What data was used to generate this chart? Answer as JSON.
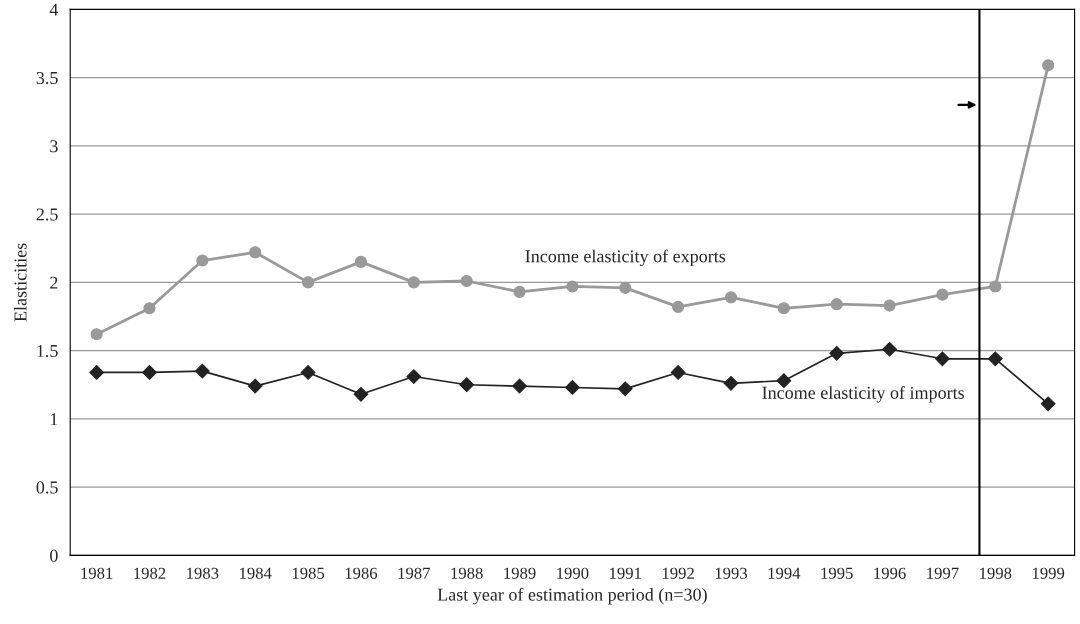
{
  "chart_data": {
    "type": "line",
    "xlabel": "Last year of estimation period (n=30)",
    "ylabel": "Elasticities",
    "x": [
      1981,
      1982,
      1983,
      1984,
      1985,
      1986,
      1987,
      1988,
      1989,
      1990,
      1991,
      1992,
      1993,
      1994,
      1995,
      1996,
      1997,
      1998,
      1999
    ],
    "series": [
      {
        "name": "Income elasticity of exports",
        "color": "#999999",
        "marker": "circle",
        "values": [
          1.62,
          1.81,
          2.16,
          2.22,
          2.0,
          2.15,
          2.0,
          2.01,
          1.93,
          1.97,
          1.96,
          1.82,
          1.89,
          1.81,
          1.84,
          1.83,
          1.91,
          1.97,
          3.59
        ]
      },
      {
        "name": "Income elasticity of imports",
        "color": "#222222",
        "marker": "diamond",
        "values": [
          1.34,
          1.34,
          1.35,
          1.24,
          1.34,
          1.18,
          1.31,
          1.25,
          1.24,
          1.23,
          1.22,
          1.34,
          1.26,
          1.28,
          1.48,
          1.51,
          1.44,
          1.44,
          1.11
        ]
      }
    ],
    "xlim": [
      1980.5,
      1999.5
    ],
    "xticks": [
      1981,
      1982,
      1983,
      1984,
      1985,
      1986,
      1987,
      1988,
      1989,
      1990,
      1991,
      1992,
      1993,
      1994,
      1995,
      1996,
      1997,
      1998,
      1999
    ],
    "ylim": [
      0,
      4
    ],
    "yticks": [
      0,
      0.5,
      1,
      1.5,
      2,
      2.5,
      3,
      3.5,
      4
    ],
    "ref_lines": [
      {
        "axis": "x",
        "value": 1997.7,
        "color": "#000000"
      }
    ],
    "grid": "y",
    "legend": false
  }
}
